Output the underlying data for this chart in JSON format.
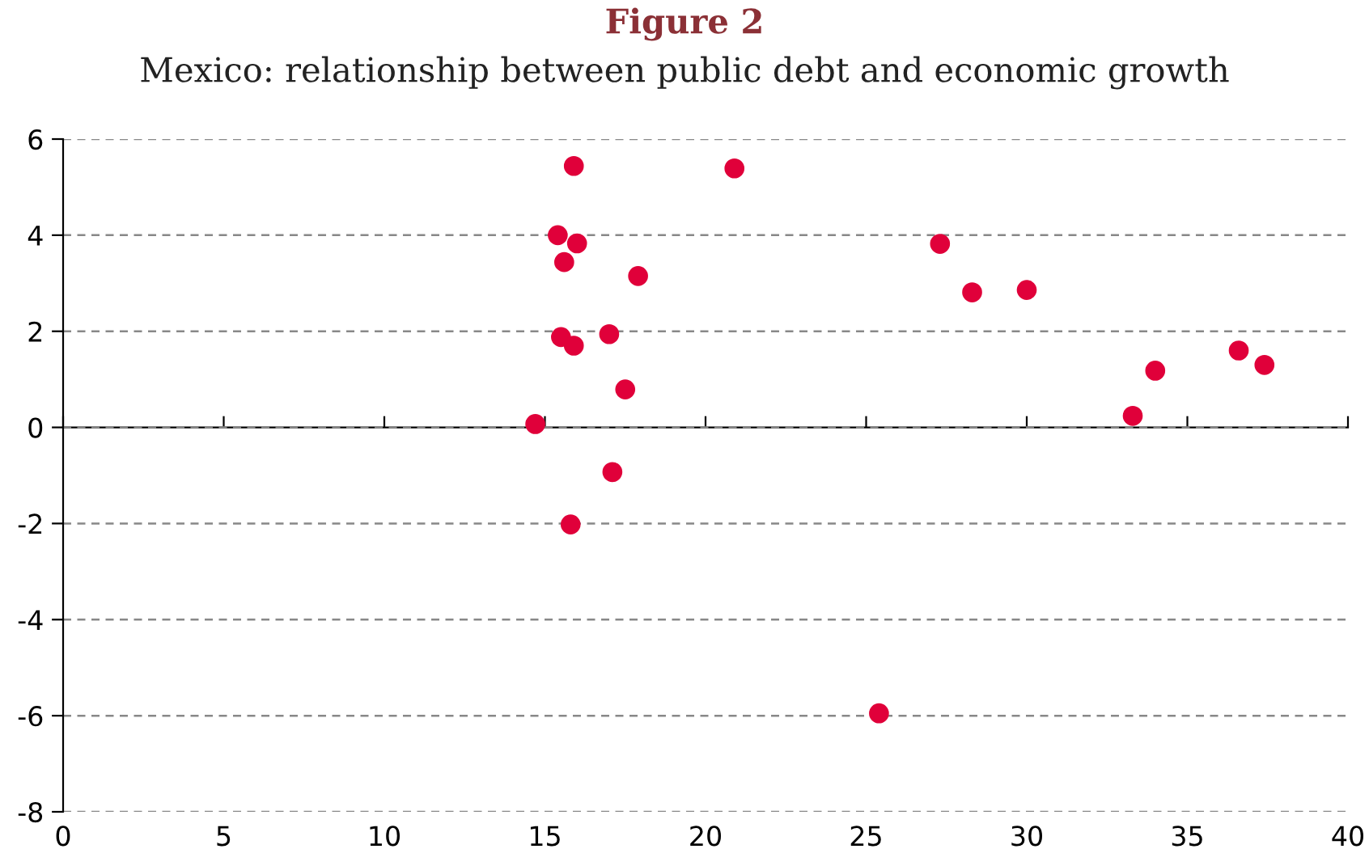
{
  "chart_data": {
    "type": "scatter",
    "title": "Figure 2",
    "subtitle": "Mexico: relationship between public debt and economic growth",
    "x": [
      15.9,
      20.9,
      15.4,
      16.0,
      15.6,
      17.9,
      15.5,
      17.0,
      15.9,
      17.5,
      14.7,
      17.1,
      15.8,
      25.4,
      27.3,
      28.3,
      30.0,
      33.3,
      34.0,
      36.6,
      37.4
    ],
    "series": [
      {
        "color": "#e0003a",
        "values": [
          5.44,
          5.39,
          4.0,
          3.83,
          3.44,
          3.15,
          1.88,
          1.94,
          1.7,
          0.79,
          0.07,
          -0.93,
          -2.02,
          -5.95,
          3.82,
          2.81,
          2.86,
          0.24,
          1.18,
          1.6,
          1.3
        ]
      }
    ],
    "xlim": [
      0,
      40
    ],
    "xticks": [
      0,
      5,
      10,
      15,
      20,
      25,
      30,
      35,
      40
    ],
    "ylim": [
      -8,
      6
    ],
    "yticks": [
      -8,
      -6,
      -4,
      -2,
      0,
      2,
      4,
      6
    ],
    "grid": "y",
    "marker": "circle",
    "legend": false
  }
}
